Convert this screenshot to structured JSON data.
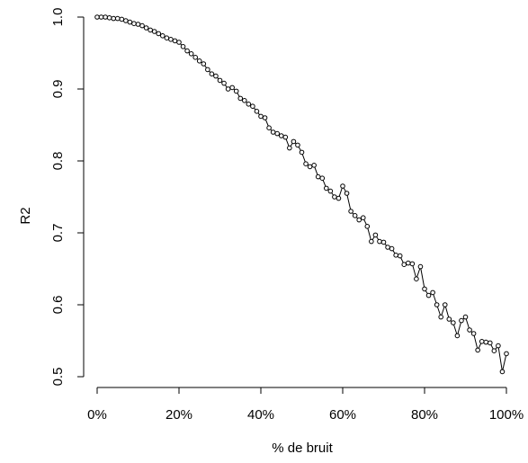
{
  "chart_data": {
    "type": "line",
    "xlabel": "% de bruit",
    "ylabel": "R2",
    "xlim": [
      0,
      100
    ],
    "ylim": [
      0.5,
      1.0
    ],
    "x_ticks": [
      0,
      20,
      40,
      60,
      80,
      100
    ],
    "x_tick_labels": [
      "0%",
      "20%",
      "40%",
      "60%",
      "80%",
      "100%"
    ],
    "y_ticks": [
      0.5,
      0.6,
      0.7,
      0.8,
      0.9,
      1.0
    ],
    "y_tick_labels": [
      "0.5",
      "0.6",
      "0.7",
      "0.8",
      "0.9",
      "1.0"
    ],
    "grid": false,
    "marker": "open-circle",
    "series": [
      {
        "x": [
          0,
          1,
          2,
          3,
          4,
          5,
          6,
          7,
          8,
          9,
          10,
          11,
          12,
          13,
          14,
          15,
          16,
          17,
          18,
          19,
          20,
          21,
          22,
          23,
          24,
          25,
          26,
          27,
          28,
          29,
          30,
          31,
          32,
          33,
          34,
          35,
          36,
          37,
          38,
          39,
          40,
          41,
          42,
          43,
          44,
          45,
          46,
          47,
          48,
          49,
          50,
          51,
          52,
          53,
          54,
          55,
          56,
          57,
          58,
          59,
          60,
          61,
          62,
          63,
          64,
          65,
          66,
          67,
          68,
          69,
          70,
          71,
          72,
          73,
          74,
          75,
          76,
          77,
          78,
          79,
          80,
          81,
          82,
          83,
          84,
          85,
          86,
          87,
          88,
          89,
          90,
          91,
          92,
          93,
          94,
          95,
          96,
          97,
          98,
          99,
          100
        ],
        "y": [
          1.0,
          1.0,
          1.0,
          0.999,
          0.998,
          0.998,
          0.997,
          0.995,
          0.993,
          0.991,
          0.99,
          0.988,
          0.985,
          0.982,
          0.98,
          0.977,
          0.974,
          0.971,
          0.969,
          0.967,
          0.965,
          0.959,
          0.953,
          0.949,
          0.944,
          0.939,
          0.935,
          0.927,
          0.921,
          0.918,
          0.912,
          0.908,
          0.9,
          0.902,
          0.897,
          0.887,
          0.884,
          0.879,
          0.876,
          0.869,
          0.862,
          0.86,
          0.846,
          0.84,
          0.838,
          0.835,
          0.833,
          0.818,
          0.827,
          0.822,
          0.812,
          0.796,
          0.792,
          0.794,
          0.778,
          0.776,
          0.762,
          0.758,
          0.75,
          0.748,
          0.765,
          0.755,
          0.73,
          0.724,
          0.718,
          0.721,
          0.709,
          0.688,
          0.697,
          0.688,
          0.687,
          0.68,
          0.678,
          0.669,
          0.668,
          0.656,
          0.658,
          0.657,
          0.636,
          0.653,
          0.622,
          0.613,
          0.617,
          0.6,
          0.583,
          0.6,
          0.58,
          0.575,
          0.557,
          0.578,
          0.583,
          0.565,
          0.56,
          0.537,
          0.549,
          0.548,
          0.547,
          0.536,
          0.543,
          0.507,
          0.532
        ]
      }
    ]
  }
}
